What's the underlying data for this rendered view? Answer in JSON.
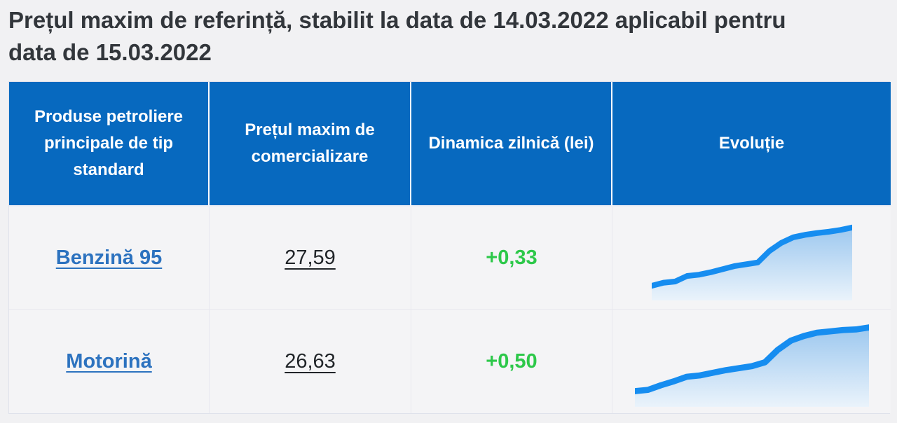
{
  "title": "Prețul maxim de referință, stabilit la data de 14.03.2022 aplicabil pentru data de 15.03.2022",
  "table": {
    "columns": [
      {
        "label": "Produse petroliere principale de tip standard"
      },
      {
        "label": "Prețul maxim de comercializare"
      },
      {
        "label": "Dinamica zilnică (lei)"
      },
      {
        "label": "Evoluție"
      }
    ],
    "rows": [
      {
        "product": "Benzină 95",
        "price": "27,59",
        "dynamic": "+0,33",
        "sparkline": {
          "values": [
            0.03,
            0.08,
            0.1,
            0.19,
            0.21,
            0.25,
            0.3,
            0.35,
            0.38,
            0.41,
            0.6,
            0.73,
            0.82,
            0.86,
            0.89,
            0.91,
            0.94,
            0.98
          ]
        }
      },
      {
        "product": "Motorină",
        "price": "26,63",
        "dynamic": "+0,50",
        "sparkline": {
          "values": [
            0.03,
            0.05,
            0.12,
            0.18,
            0.25,
            0.27,
            0.31,
            0.35,
            0.38,
            0.41,
            0.47,
            0.66,
            0.8,
            0.87,
            0.92,
            0.94,
            0.96,
            0.97,
            1.0
          ]
        }
      }
    ]
  },
  "chart_data": [
    {
      "type": "area",
      "title": "Evoluție — Benzină 95",
      "series": [
        {
          "name": "Benzină 95",
          "values": [
            0.03,
            0.08,
            0.1,
            0.19,
            0.21,
            0.25,
            0.3,
            0.35,
            0.38,
            0.41,
            0.6,
            0.73,
            0.82,
            0.86,
            0.89,
            0.91,
            0.94,
            0.98
          ]
        }
      ],
      "xlabel": "",
      "ylabel": "",
      "ylim": [
        0,
        1
      ],
      "grid": false,
      "legend": "none",
      "note": "unlabeled sparkline; values are relative price levels over time, rising stepwise with a steep climb about two-thirds along"
    },
    {
      "type": "area",
      "title": "Evoluție — Motorină",
      "series": [
        {
          "name": "Motorină",
          "values": [
            0.03,
            0.05,
            0.12,
            0.18,
            0.25,
            0.27,
            0.31,
            0.35,
            0.38,
            0.41,
            0.47,
            0.66,
            0.8,
            0.87,
            0.92,
            0.94,
            0.96,
            0.97,
            1.0
          ]
        }
      ],
      "xlabel": "",
      "ylabel": "",
      "ylim": [
        0,
        1
      ],
      "grid": false,
      "legend": "none",
      "note": "unlabeled sparkline; values are relative price levels over time, rising stepwise with a steep climb about two-thirds along"
    }
  ],
  "colors": {
    "page_bg": "#f1f1f3",
    "cell_bg": "#f4f4f6",
    "header_bg": "#0769bf",
    "header_text": "#ffffff",
    "title_text": "#32363b",
    "link_blue": "#2c72bf",
    "price_text": "#212529",
    "positive_green": "#2dc84a",
    "spark_line": "#168df0",
    "spark_fill_top": "#9dc8ef",
    "spark_fill_bottom": "#eaf3fb",
    "border": "#e8e8ef"
  }
}
